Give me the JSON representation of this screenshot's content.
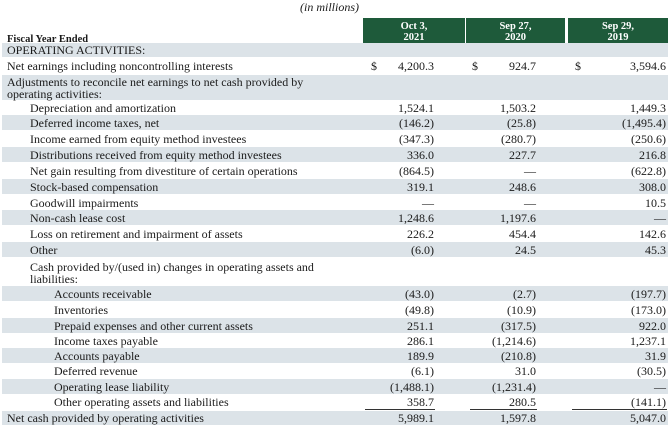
{
  "caption": "(in millions)",
  "fiscal_year_label": "Fiscal Year Ended",
  "columns": [
    {
      "line1": "Oct 3,",
      "line2": "2021"
    },
    {
      "line1": "Sep 27,",
      "line2": "2020"
    },
    {
      "line1": "Sep 29,",
      "line2": "2019"
    }
  ],
  "section_operating": "OPERATING ACTIVITIES:",
  "currency_symbol": "$",
  "net_earnings": {
    "label": "Net earnings including noncontrolling interests",
    "v1": "4,200.3",
    "v2": "924.7",
    "v3": "3,594.6"
  },
  "adjustments_label_1": "Adjustments to reconcile net earnings to net cash provided by",
  "adjustments_label_2": "operating activities:",
  "adjust_rows": [
    {
      "label": "Depreciation and amortization",
      "v1": "1,524.1",
      "v2": "1,503.2",
      "v3": "1,449.3"
    },
    {
      "label": "Deferred income taxes, net",
      "v1": "(146.2)",
      "v2": "(25.8)",
      "v3": "(1,495.4)"
    },
    {
      "label": "Income earned from equity method investees",
      "v1": "(347.3)",
      "v2": "(280.7)",
      "v3": "(250.6)"
    },
    {
      "label": "Distributions received from equity method investees",
      "v1": "336.0",
      "v2": "227.7",
      "v3": "216.8"
    },
    {
      "label": "Net gain resulting from divestiture of certain operations",
      "v1": "(864.5)",
      "v2": "—",
      "v3": "(622.8)"
    },
    {
      "label": "Stock-based compensation",
      "v1": "319.1",
      "v2": "248.6",
      "v3": "308.0"
    },
    {
      "label": "Goodwill impairments",
      "v1": "—",
      "v2": "—",
      "v3": "10.5"
    },
    {
      "label": "Non-cash lease cost",
      "v1": "1,248.6",
      "v2": "1,197.6",
      "v3": "—"
    },
    {
      "label": "Loss on retirement and impairment of assets",
      "v1": "226.2",
      "v2": "454.4",
      "v3": "142.6"
    },
    {
      "label": "Other",
      "v1": "(6.0)",
      "v2": "24.5",
      "v3": "45.3"
    }
  ],
  "changes_label_1": "Cash provided by/(used in) changes in operating assets and",
  "changes_label_2": "liabilities:",
  "change_rows": [
    {
      "label": "Accounts receivable",
      "v1": "(43.0)",
      "v2": "(2.7)",
      "v3": "(197.7)"
    },
    {
      "label": "Inventories",
      "v1": "(49.8)",
      "v2": "(10.9)",
      "v3": "(173.0)"
    },
    {
      "label": "Prepaid expenses and other current assets",
      "v1": "251.1",
      "v2": "(317.5)",
      "v3": "922.0"
    },
    {
      "label": "Income taxes payable",
      "v1": "286.1",
      "v2": "(1,214.6)",
      "v3": "1,237.1"
    },
    {
      "label": "Accounts payable",
      "v1": "189.9",
      "v2": "(210.8)",
      "v3": "31.9"
    },
    {
      "label": "Deferred revenue",
      "v1": "(6.1)",
      "v2": "31.0",
      "v3": "(30.5)"
    },
    {
      "label": "Operating lease liability",
      "v1": "(1,488.1)",
      "v2": "(1,231.4)",
      "v3": "—"
    },
    {
      "label": "Other operating assets and liabilities",
      "v1": "358.7",
      "v2": "280.5",
      "v3": "(141.1)"
    }
  ],
  "net_cash": {
    "label": "Net cash provided by operating activities",
    "v1": "5,989.1",
    "v2": "1,597.8",
    "v3": "5,047.0"
  },
  "colors": {
    "header_bg": "#1e5a3a",
    "stripe": "#dce3e8"
  }
}
